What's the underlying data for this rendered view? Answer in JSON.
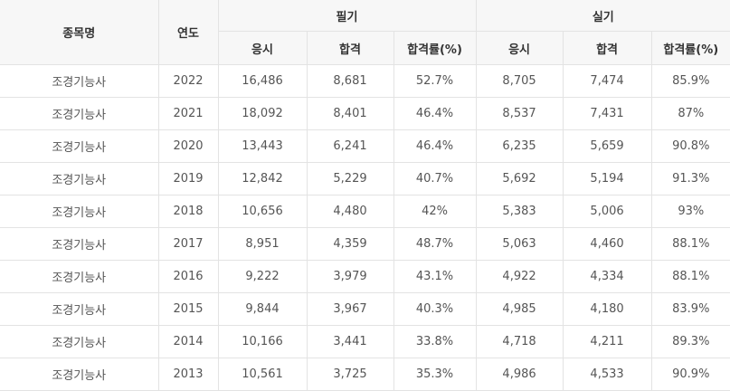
{
  "table": {
    "headers": {
      "item": "종목명",
      "year": "연도",
      "written": "필기",
      "practical": "실기",
      "applicants": "응시",
      "passed": "합격",
      "pass_rate": "합격률(%)"
    },
    "rows": [
      {
        "name": "조경기능사",
        "year": "2022",
        "w_app": "16,486",
        "w_pass": "8,681",
        "w_rate": "52.7%",
        "p_app": "8,705",
        "p_pass": "7,474",
        "p_rate": "85.9%"
      },
      {
        "name": "조경기능사",
        "year": "2021",
        "w_app": "18,092",
        "w_pass": "8,401",
        "w_rate": "46.4%",
        "p_app": "8,537",
        "p_pass": "7,431",
        "p_rate": "87%"
      },
      {
        "name": "조경기능사",
        "year": "2020",
        "w_app": "13,443",
        "w_pass": "6,241",
        "w_rate": "46.4%",
        "p_app": "6,235",
        "p_pass": "5,659",
        "p_rate": "90.8%"
      },
      {
        "name": "조경기능사",
        "year": "2019",
        "w_app": "12,842",
        "w_pass": "5,229",
        "w_rate": "40.7%",
        "p_app": "5,692",
        "p_pass": "5,194",
        "p_rate": "91.3%"
      },
      {
        "name": "조경기능사",
        "year": "2018",
        "w_app": "10,656",
        "w_pass": "4,480",
        "w_rate": "42%",
        "p_app": "5,383",
        "p_pass": "5,006",
        "p_rate": "93%"
      },
      {
        "name": "조경기능사",
        "year": "2017",
        "w_app": "8,951",
        "w_pass": "4,359",
        "w_rate": "48.7%",
        "p_app": "5,063",
        "p_pass": "4,460",
        "p_rate": "88.1%"
      },
      {
        "name": "조경기능사",
        "year": "2016",
        "w_app": "9,222",
        "w_pass": "3,979",
        "w_rate": "43.1%",
        "p_app": "4,922",
        "p_pass": "4,334",
        "p_rate": "88.1%"
      },
      {
        "name": "조경기능사",
        "year": "2015",
        "w_app": "9,844",
        "w_pass": "3,967",
        "w_rate": "40.3%",
        "p_app": "4,985",
        "p_pass": "4,180",
        "p_rate": "83.9%"
      },
      {
        "name": "조경기능사",
        "year": "2014",
        "w_app": "10,166",
        "w_pass": "3,441",
        "w_rate": "33.8%",
        "p_app": "4,718",
        "p_pass": "4,211",
        "p_rate": "89.3%"
      },
      {
        "name": "조경기능사",
        "year": "2013",
        "w_app": "10,561",
        "w_pass": "3,725",
        "w_rate": "35.3%",
        "p_app": "4,986",
        "p_pass": "4,533",
        "p_rate": "90.9%"
      }
    ]
  }
}
